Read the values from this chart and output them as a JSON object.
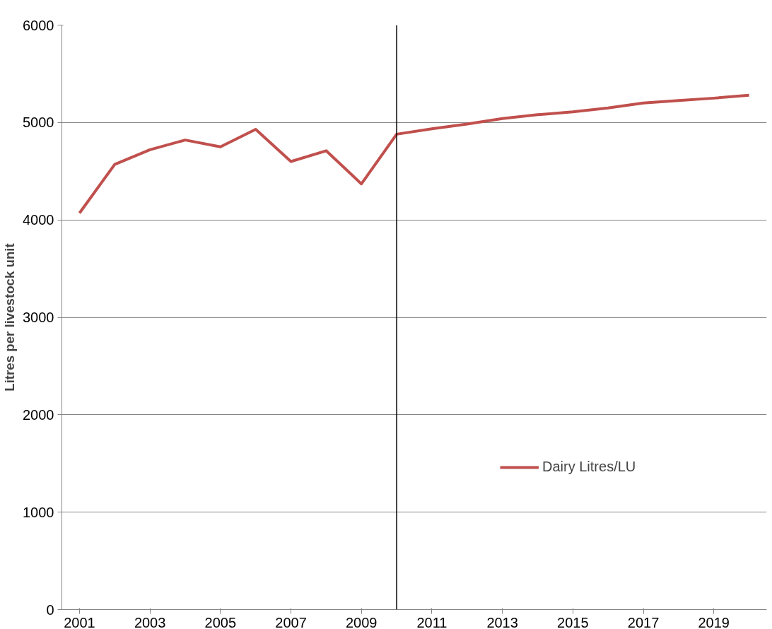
{
  "chart_data": {
    "type": "line",
    "ylabel": "Litres per livestock unit",
    "x": [
      2001,
      2002,
      2003,
      2004,
      2005,
      2006,
      2007,
      2008,
      2009,
      2010,
      2011,
      2012,
      2013,
      2014,
      2015,
      2016,
      2017,
      2018,
      2019,
      2020
    ],
    "series": [
      {
        "name": "Dairy Litres/LU",
        "color": "#c0504d",
        "values": [
          4070,
          4570,
          4720,
          4820,
          4750,
          4930,
          4600,
          4710,
          4370,
          4880,
          4935,
          4985,
          5040,
          5080,
          5110,
          5150,
          5200,
          5225,
          5250,
          5280
        ]
      }
    ],
    "xlim": [
      2000.5,
      2020.5
    ],
    "xticks": [
      2001,
      2003,
      2005,
      2007,
      2009,
      2011,
      2013,
      2015,
      2017,
      2019
    ],
    "ylim": [
      0,
      6000
    ],
    "yticks": [
      0,
      1000,
      2000,
      3000,
      4000,
      5000,
      6000
    ],
    "ref_lines": [
      {
        "axis": "x",
        "value": 2010,
        "color": "#000000"
      }
    ],
    "grid": "y",
    "legend": "right",
    "marker": "none",
    "line_style": "solid"
  }
}
